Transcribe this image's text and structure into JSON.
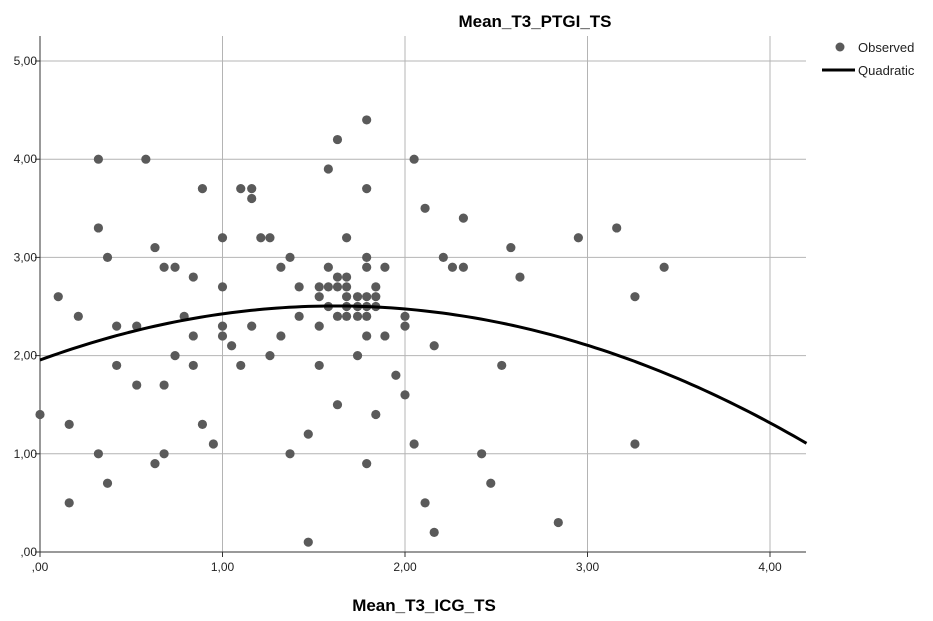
{
  "chart_data": {
    "type": "scatter",
    "title": "Mean_T3_PTGI_TS",
    "xlabel": "Mean_T3_ICG_TS",
    "ylabel": "",
    "xlim": [
      0,
      4.2
    ],
    "ylim": [
      0,
      5.25
    ],
    "x_ticks": [
      0,
      1,
      2,
      3,
      4
    ],
    "x_tick_labels": [
      ",00",
      "1,00",
      "2,00",
      "3,00",
      "4,00"
    ],
    "y_ticks": [
      0,
      1,
      2,
      3,
      4,
      5
    ],
    "y_tick_labels": [
      ",00",
      "1,00",
      "2,00",
      "3,00",
      "4,00",
      "5,00"
    ],
    "grid": true,
    "legend_position": "top-right",
    "colors": {
      "observed": "#5a5a5a",
      "fit": "#000000",
      "grid": "#b4b4b4",
      "axis": "#333333"
    },
    "series": [
      {
        "name": "Observed",
        "kind": "points",
        "points": [
          [
            0.0,
            1.4
          ],
          [
            0.1,
            2.6
          ],
          [
            0.16,
            1.3
          ],
          [
            0.16,
            0.5
          ],
          [
            0.21,
            2.4
          ],
          [
            0.32,
            4.0
          ],
          [
            0.32,
            3.3
          ],
          [
            0.32,
            1.0
          ],
          [
            0.37,
            3.0
          ],
          [
            0.37,
            0.7
          ],
          [
            0.42,
            2.3
          ],
          [
            0.42,
            1.9
          ],
          [
            0.53,
            2.3
          ],
          [
            0.53,
            1.7
          ],
          [
            0.58,
            4.0
          ],
          [
            0.63,
            3.1
          ],
          [
            0.63,
            0.9
          ],
          [
            0.68,
            2.9
          ],
          [
            0.68,
            1.7
          ],
          [
            0.68,
            1.0
          ],
          [
            0.74,
            2.9
          ],
          [
            0.74,
            2.0
          ],
          [
            0.79,
            2.4
          ],
          [
            0.84,
            2.8
          ],
          [
            0.84,
            2.2
          ],
          [
            0.84,
            1.9
          ],
          [
            0.89,
            3.7
          ],
          [
            0.89,
            1.3
          ],
          [
            0.95,
            1.1
          ],
          [
            1.0,
            3.2
          ],
          [
            1.0,
            2.7
          ],
          [
            1.0,
            2.3
          ],
          [
            1.0,
            2.2
          ],
          [
            1.05,
            2.1
          ],
          [
            1.1,
            3.7
          ],
          [
            1.1,
            1.9
          ],
          [
            1.16,
            3.7
          ],
          [
            1.16,
            3.6
          ],
          [
            1.16,
            2.3
          ],
          [
            1.21,
            3.2
          ],
          [
            1.26,
            3.2
          ],
          [
            1.26,
            2.0
          ],
          [
            1.32,
            2.9
          ],
          [
            1.32,
            2.2
          ],
          [
            1.37,
            3.0
          ],
          [
            1.37,
            1.0
          ],
          [
            1.42,
            2.7
          ],
          [
            1.42,
            2.4
          ],
          [
            1.47,
            1.2
          ],
          [
            1.47,
            0.1
          ],
          [
            1.53,
            2.7
          ],
          [
            1.53,
            2.6
          ],
          [
            1.53,
            2.3
          ],
          [
            1.53,
            1.9
          ],
          [
            1.58,
            3.9
          ],
          [
            1.58,
            2.9
          ],
          [
            1.58,
            2.7
          ],
          [
            1.58,
            2.5
          ],
          [
            1.63,
            4.2
          ],
          [
            1.63,
            2.8
          ],
          [
            1.63,
            2.7
          ],
          [
            1.63,
            2.4
          ],
          [
            1.63,
            1.5
          ],
          [
            1.68,
            3.2
          ],
          [
            1.68,
            2.8
          ],
          [
            1.68,
            2.7
          ],
          [
            1.68,
            2.6
          ],
          [
            1.68,
            2.5
          ],
          [
            1.68,
            2.4
          ],
          [
            1.74,
            2.6
          ],
          [
            1.74,
            2.5
          ],
          [
            1.74,
            2.4
          ],
          [
            1.74,
            2.0
          ],
          [
            1.79,
            4.4
          ],
          [
            1.79,
            3.7
          ],
          [
            1.79,
            3.0
          ],
          [
            1.79,
            2.9
          ],
          [
            1.79,
            2.6
          ],
          [
            1.79,
            2.5
          ],
          [
            1.79,
            2.4
          ],
          [
            1.79,
            2.2
          ],
          [
            1.79,
            0.9
          ],
          [
            1.84,
            2.7
          ],
          [
            1.84,
            2.6
          ],
          [
            1.84,
            2.5
          ],
          [
            1.84,
            1.4
          ],
          [
            1.89,
            2.9
          ],
          [
            1.89,
            2.2
          ],
          [
            1.95,
            1.8
          ],
          [
            2.0,
            2.4
          ],
          [
            2.0,
            2.3
          ],
          [
            2.0,
            1.6
          ],
          [
            2.05,
            4.0
          ],
          [
            2.05,
            1.1
          ],
          [
            2.11,
            3.5
          ],
          [
            2.11,
            0.5
          ],
          [
            2.16,
            2.1
          ],
          [
            2.16,
            0.2
          ],
          [
            2.21,
            3.0
          ],
          [
            2.26,
            2.9
          ],
          [
            2.32,
            3.4
          ],
          [
            2.32,
            2.9
          ],
          [
            2.42,
            1.0
          ],
          [
            2.47,
            0.7
          ],
          [
            2.53,
            1.9
          ],
          [
            2.58,
            3.1
          ],
          [
            2.63,
            2.8
          ],
          [
            2.84,
            0.3
          ],
          [
            2.95,
            3.2
          ],
          [
            3.16,
            3.3
          ],
          [
            3.26,
            2.6
          ],
          [
            3.26,
            1.1
          ],
          [
            3.42,
            2.9
          ]
        ]
      },
      {
        "name": "Quadratic",
        "kind": "curve",
        "coefficients": {
          "b0": 1.955,
          "b1": 0.68,
          "b2": -0.21
        }
      }
    ]
  }
}
